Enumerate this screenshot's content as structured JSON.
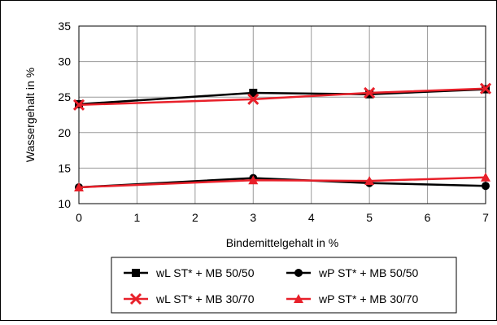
{
  "chart_data": {
    "type": "line",
    "title": "",
    "xlabel": "Bindemittelgehalt in %",
    "ylabel": "Wassergehalt in %",
    "xlim": [
      0,
      7
    ],
    "ylim": [
      10,
      35
    ],
    "xticks": [
      0,
      1,
      2,
      3,
      4,
      5,
      6,
      7
    ],
    "yticks": [
      10,
      15,
      20,
      25,
      30,
      35
    ],
    "grid": true,
    "legend_position": "bottom",
    "series": [
      {
        "name": "wL ST* + MB 50/50",
        "color": "#000000",
        "marker": "square",
        "x": [
          0,
          3,
          5,
          7
        ],
        "y": [
          24.0,
          25.6,
          25.4,
          26.1
        ]
      },
      {
        "name": "wP ST* + MB 50/50",
        "color": "#000000",
        "marker": "circle",
        "x": [
          0,
          3,
          5,
          7
        ],
        "y": [
          12.3,
          13.6,
          12.9,
          12.5
        ]
      },
      {
        "name": "wL ST* + MB 30/70",
        "color": "#e8202a",
        "marker": "x",
        "x": [
          0,
          3,
          5,
          7
        ],
        "y": [
          23.9,
          24.7,
          25.6,
          26.2
        ]
      },
      {
        "name": "wP ST* + MB 30/70",
        "color": "#e8202a",
        "marker": "triangle",
        "x": [
          0,
          3,
          5,
          7
        ],
        "y": [
          12.3,
          13.3,
          13.2,
          13.7
        ]
      }
    ]
  }
}
